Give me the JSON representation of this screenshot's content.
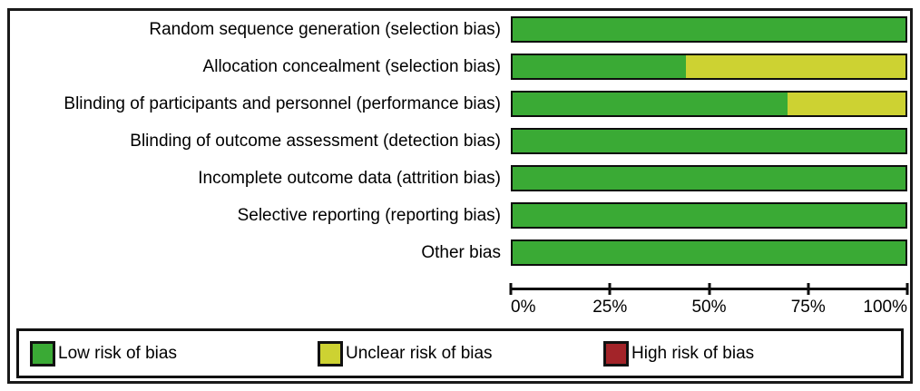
{
  "figure": {
    "background": "#ffffff",
    "frame_border_color": "#1a1a1a",
    "bar_border_color": "#0d0d0d"
  },
  "chart_data": {
    "type": "bar",
    "orientation": "horizontal-stacked",
    "title": "",
    "xlabel": "",
    "ylabel": "",
    "xlim": [
      0,
      100
    ],
    "grid": false,
    "legend_position": "bottom",
    "categories": [
      "Random sequence generation (selection bias)",
      "Allocation concealment (selection bias)",
      "Blinding of participants and personnel (performance bias)",
      "Blinding of outcome assessment (detection bias)",
      "Incomplete outcome data (attrition bias)",
      "Selective reporting (reporting bias)",
      "Other bias"
    ],
    "series": [
      {
        "name": "Low risk of bias",
        "color": "#3aaa35",
        "values": [
          100,
          44,
          70,
          100,
          100,
          100,
          100
        ]
      },
      {
        "name": "Unclear risk of bias",
        "color": "#cdd232",
        "values": [
          0,
          56,
          30,
          0,
          0,
          0,
          0
        ]
      },
      {
        "name": "High risk of bias",
        "color": "#a32429",
        "values": [
          0,
          0,
          0,
          0,
          0,
          0,
          0
        ]
      }
    ],
    "x_ticks": [
      "0%",
      "25%",
      "50%",
      "75%",
      "100%"
    ]
  },
  "legend": {
    "items": [
      {
        "label": "Low risk of bias",
        "color": "#3aaa35"
      },
      {
        "label": "Unclear risk of bias",
        "color": "#cdd232"
      },
      {
        "label": "High risk of bias",
        "color": "#a32429"
      }
    ]
  }
}
